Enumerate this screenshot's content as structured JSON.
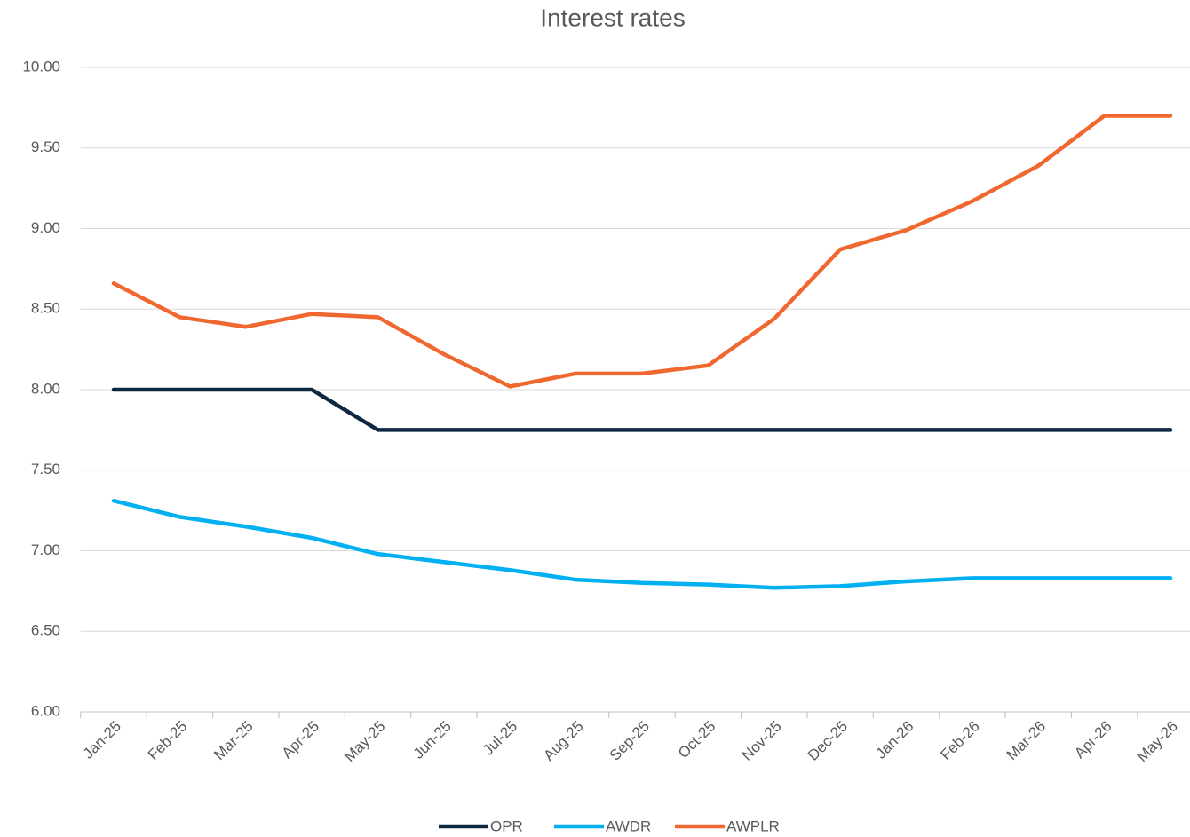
{
  "chart_data": {
    "type": "line",
    "title": "Interest rates",
    "categories": [
      "Jan-25",
      "Feb-25",
      "Mar-25",
      "Apr-25",
      "May-25",
      "Jun-25",
      "Jul-25",
      "Aug-25",
      "Sep-25",
      "Oct-25",
      "Nov-25",
      "Dec-25",
      "Jan-26",
      "Feb-26",
      "Mar-26",
      "Apr-26",
      "May-26"
    ],
    "series": [
      {
        "name": "OPR",
        "color": "#0e2841",
        "values": [
          8.0,
          8.0,
          8.0,
          8.0,
          7.75,
          7.75,
          7.75,
          7.75,
          7.75,
          7.75,
          7.75,
          7.75,
          7.75,
          7.75,
          7.75,
          7.75,
          7.75
        ]
      },
      {
        "name": "AWDR",
        "color": "#00b0f0",
        "values": [
          7.31,
          7.21,
          7.15,
          7.08,
          6.98,
          6.93,
          6.88,
          6.82,
          6.8,
          6.79,
          6.77,
          6.78,
          6.81,
          6.83,
          6.83,
          6.83,
          6.83
        ]
      },
      {
        "name": "AWPLR",
        "color": "#f0682f",
        "values": [
          8.66,
          8.45,
          8.39,
          8.47,
          8.45,
          8.22,
          8.02,
          8.1,
          8.1,
          8.15,
          8.44,
          8.87,
          8.99,
          9.17,
          9.39,
          9.7,
          9.7
        ]
      }
    ],
    "ylim": [
      6,
      10
    ],
    "yticks": [
      {
        "value": 6,
        "label": "6.00"
      },
      {
        "value": 6.5,
        "label": "6.50"
      },
      {
        "value": 7,
        "label": "7.00"
      },
      {
        "value": 7.5,
        "label": "7.50"
      },
      {
        "value": 8,
        "label": "8.00"
      },
      {
        "value": 8.5,
        "label": "8.50"
      },
      {
        "value": 9,
        "label": "9.00"
      },
      {
        "value": 9.5,
        "label": "9.50"
      },
      {
        "value": 10,
        "label": "10.00"
      }
    ],
    "grid": true,
    "legend": "bottom"
  }
}
